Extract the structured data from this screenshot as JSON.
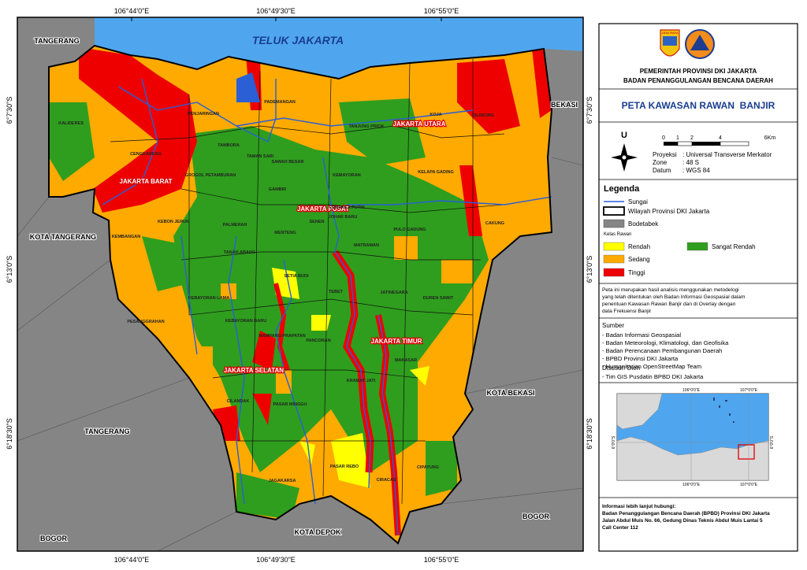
{
  "graticule": {
    "lon": [
      "106°44'0\"E",
      "106°49'30\"E",
      "106°55'0\"E"
    ],
    "lat": [
      "6°7'30\"S",
      "6°13'0\"S",
      "6°18'30\"S"
    ]
  },
  "map": {
    "sea_label": "TELUK JAKARTA",
    "regions": [
      "TANGERANG",
      "BEKASI",
      "KOTA TANGERANG",
      "KOTA BEKASI",
      "TANGERANG",
      "BOGOR",
      "KOTA DEPOK",
      "BOGOR"
    ],
    "cities": [
      "JAKARTA UTARA",
      "JAKARTA BARAT",
      "JAKARTA PUSAT",
      "JAKARTA SELATAN",
      "JAKARTA TIMUR"
    ],
    "districts": [
      "PADEMANGAN",
      "PENJARINGAN",
      "KALIDERES",
      "TAMBORA",
      "TANJUNG PRIOK",
      "KOJA",
      "CILINCING",
      "CENGKARENG",
      "TAMAN SARI",
      "SAWAH BESAR",
      "GROGOL PETAMBURAN",
      "KEMAYORAN",
      "KELAPA GADING",
      "GAMBIR",
      "CEMPAKA PUTIH",
      "JOHAR BARU",
      "SENEN",
      "KEBON JERUK",
      "PALMERAH",
      "CAKUNG",
      "MENTENG",
      "PULO GADUNG",
      "KEMBANGAN",
      "TANAH ABANG",
      "MATRAMAN",
      "SETIA BUDI",
      "TEBET",
      "JATINEGARA",
      "DUREN SAWIT",
      "KEBAYORAN LAMA",
      "PESANGGRAHAN",
      "KEBAYORAN BARU",
      "MAMPANG PRAPATAN",
      "PANCORAN",
      "MAKASAR",
      "KRAMAT JATI",
      "PASAR MINGGU",
      "CILANDAK",
      "JAGAKARSA",
      "PASAR REBO",
      "CIRACAS",
      "CIPAYUNG"
    ]
  },
  "panel": {
    "logo_text": "JAYA RAYA",
    "agency": [
      "PEMERINTAH PROVINSI DKI JAKARTA",
      "BADAN PENANGGULANGAN BENCANA DAERAH"
    ],
    "title": "PETA KAWASAN RAWAN  BANJIR",
    "north": "U",
    "scale_labels": [
      "0",
      "1",
      "2",
      "4",
      "6Km"
    ],
    "projection": [
      {
        "key": "Proyeksi",
        "value": ": Universal Transverse Merkator"
      },
      {
        "key": "Zone",
        "value": ": 48 S"
      },
      {
        "key": "Datum",
        "value": ": WGS 84"
      }
    ],
    "legend": {
      "title": "Legenda",
      "river": "Sungai",
      "boundary": "Wilayah Provinsi DKI Jakarta",
      "bodetabek": "Bodetabek",
      "class_title": "Kelas Rawan",
      "classes": [
        {
          "name": "Rendah",
          "color": "#ffff00"
        },
        {
          "name": "Sedang",
          "color": "#ffaa00"
        },
        {
          "name": "Tinggi",
          "color": "#ee0000"
        },
        {
          "name": "Sangat Rendah",
          "color": "#2f9e1e"
        }
      ]
    },
    "note": [
      "Peta ini merupakan hasil analisis menggunakan metodelogi",
      "yang telah ditentukan oleh Badan Informasi Geospasial dalam",
      "penentuan Kawasan Rawan Banjir dan di Overlay dengan",
      "data Frekuensi Banjir"
    ],
    "sources": {
      "title": "Sumber",
      "items": [
        "- Badan Informasi Geospasial",
        "- Badan Meteorologi, Klimatologi, dan Geofisika",
        "- Badan Perencanaan Pembangunan Daerah",
        "- BPBD Provinsi DKI Jakarta",
        "- Humanitarian OpenStreetMap Team"
      ]
    },
    "compiled": {
      "title": "Disusun Oleh",
      "items": [
        "- Tim GIS Pusdatin BPBD DKI Jakarta"
      ]
    },
    "inset": {
      "lon": [
        "106°0'0\"E",
        "107°0'0\"E"
      ],
      "lat": [
        "6°0'0\"S"
      ]
    },
    "contact": [
      "Informasi lebih lanjut hubungi:",
      "Badan Penanggulangan Bencana Daerah (BPBD) Provinsi DKI Jakarta",
      "Jalan Abdul Muis No. 66, Gedung Dinas Teknis Abdul Muis Lantai 5",
      "Call Center 112"
    ]
  }
}
